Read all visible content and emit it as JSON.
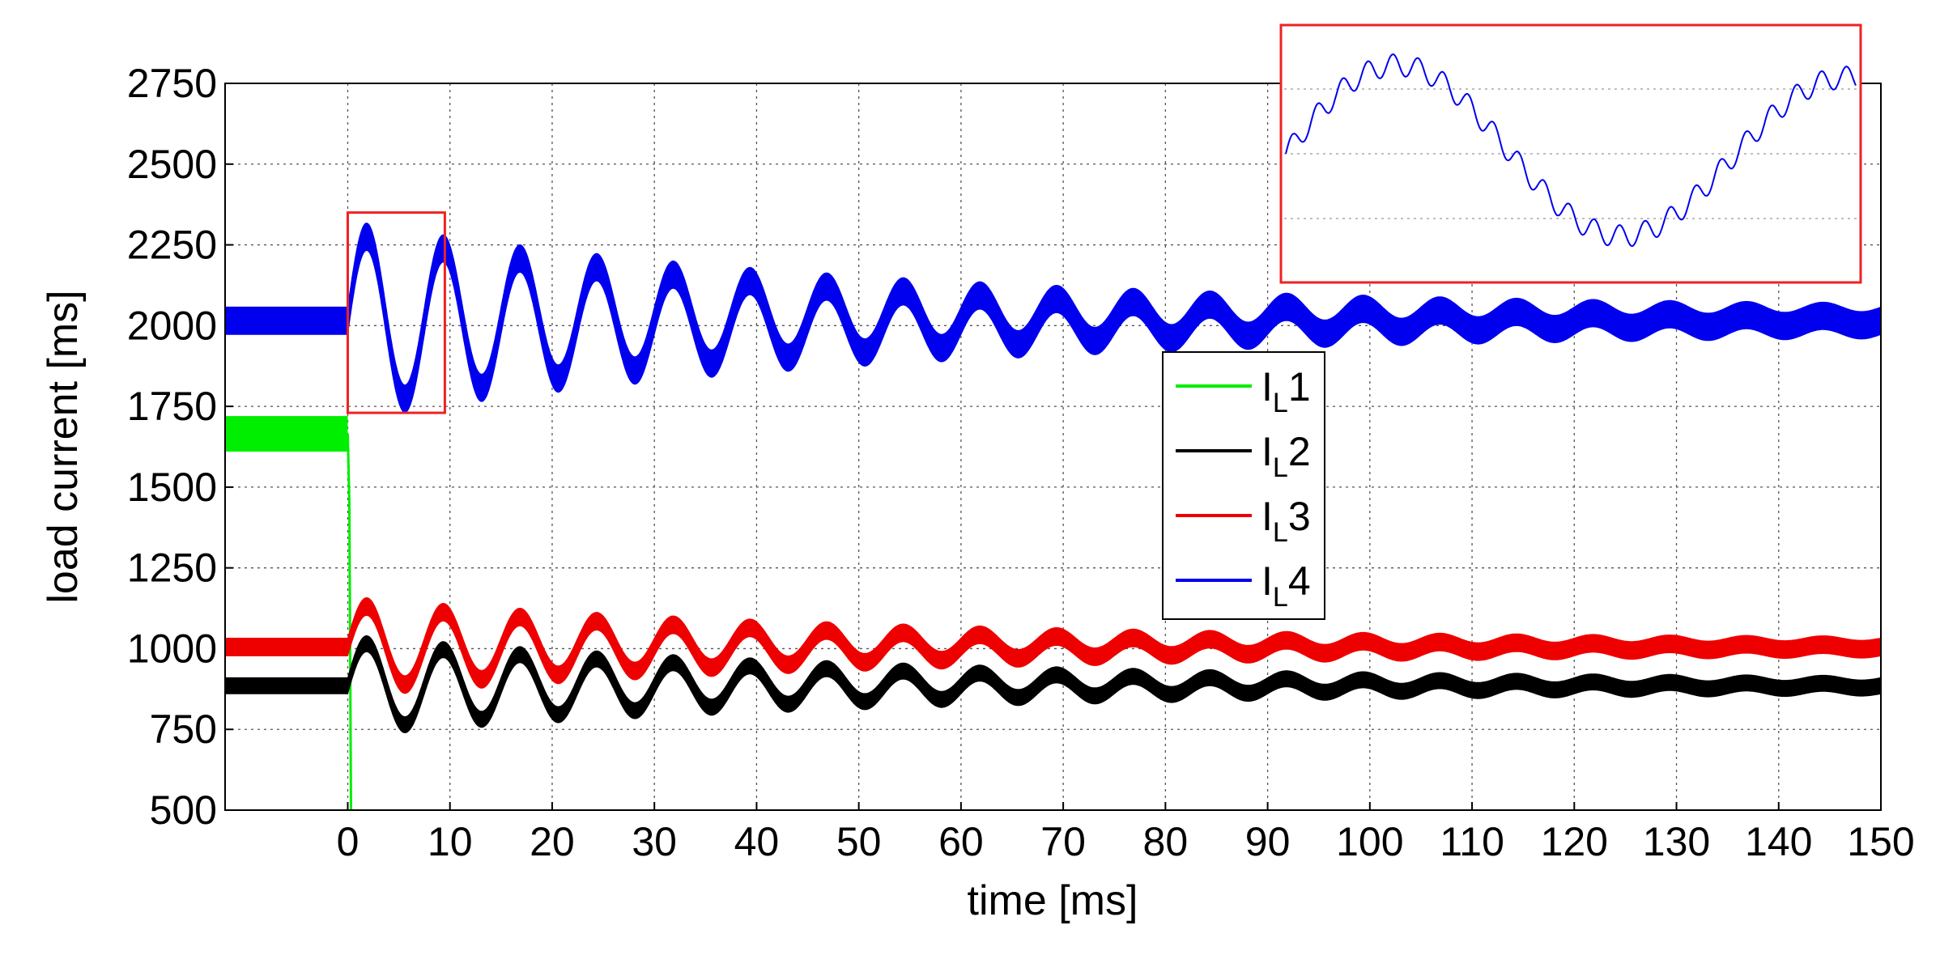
{
  "chart_data": {
    "type": "line",
    "title": "",
    "xlabel": "time [ms]",
    "ylabel": "load current [ms]",
    "xlim": [
      -12,
      150
    ],
    "ylim": [
      500,
      2750
    ],
    "xticks": [
      0,
      10,
      20,
      30,
      40,
      50,
      60,
      70,
      80,
      90,
      100,
      110,
      120,
      130,
      140,
      150
    ],
    "yticks": [
      500,
      750,
      1000,
      1250,
      1500,
      1750,
      2000,
      2250,
      2500,
      2750
    ],
    "grid": true,
    "legend": {
      "position": "center-right",
      "entries": [
        "I_L1",
        "I_L2",
        "I_L3",
        "I_L4"
      ]
    },
    "series": [
      {
        "name": "I_L1",
        "label_main": "I",
        "label_sub": "L",
        "label_index": "1",
        "color": "#00ee00",
        "pre_step_value": 1665,
        "ripple_band": 110,
        "step_time": 0,
        "post_step_value": 500
      },
      {
        "name": "I_L2",
        "label_main": "I",
        "label_sub": "L",
        "label_index": "2",
        "color": "#000000",
        "steady_value": 885,
        "ripple_band": 50,
        "transient": {
          "start_time": 0,
          "amplitude": 135,
          "period": 7.5,
          "decay_time": 50
        }
      },
      {
        "name": "I_L3",
        "label_main": "I",
        "label_sub": "L",
        "label_index": "3",
        "color": "#ee0000",
        "steady_value": 1005,
        "ripple_band": 55,
        "transient": {
          "start_time": 0,
          "amplitude": 130,
          "period": 7.5,
          "decay_time": 50
        }
      },
      {
        "name": "I_L4",
        "label_main": "I",
        "label_sub": "L",
        "label_index": "4",
        "color": "#0000ee",
        "steady_value": 2015,
        "ripple_band": 85,
        "transient": {
          "start_time": 0,
          "amplitude": 270,
          "period": 7.5,
          "decay_time": 50
        }
      }
    ],
    "annotations": [
      {
        "type": "zoom-box",
        "x_range": [
          0,
          9.5
        ],
        "y_range": [
          1730,
          2350
        ],
        "color": "#ee2222"
      },
      {
        "type": "inset",
        "description": "zoomed view of I_L4 from 0 to 9.5 ms",
        "series": "I_L4",
        "color": "#ee2222"
      }
    ]
  }
}
